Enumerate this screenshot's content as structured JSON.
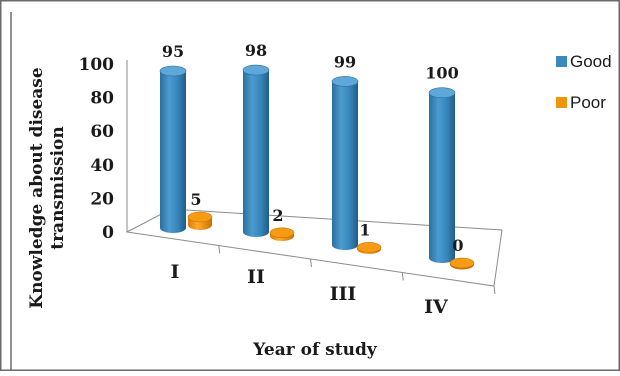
{
  "chart_data": {
    "type": "bar",
    "title": "",
    "xlabel": "Year of study",
    "ylabel_lines": [
      "Knowledge about disease",
      "transmission"
    ],
    "categories": [
      "I",
      "II",
      "III",
      "IV"
    ],
    "series": [
      {
        "name": "Good",
        "values": [
          95,
          98,
          99,
          100
        ],
        "color": "#3b88bd"
      },
      {
        "name": "Poor",
        "values": [
          5,
          2,
          1,
          0
        ],
        "color": "#f0940c"
      }
    ],
    "value_labels": {
      "Good": [
        "95",
        "98",
        "99",
        "100"
      ],
      "Poor": [
        "5",
        "2",
        "1",
        "0"
      ]
    },
    "yticks": [
      "0",
      "20",
      "40",
      "60",
      "80",
      "100"
    ],
    "ytick_values": [
      0,
      20,
      40,
      60,
      80,
      100
    ],
    "ylim": [
      0,
      100
    ],
    "grid": false,
    "legend_position": "right",
    "chart_style": "3d-cylinder"
  }
}
